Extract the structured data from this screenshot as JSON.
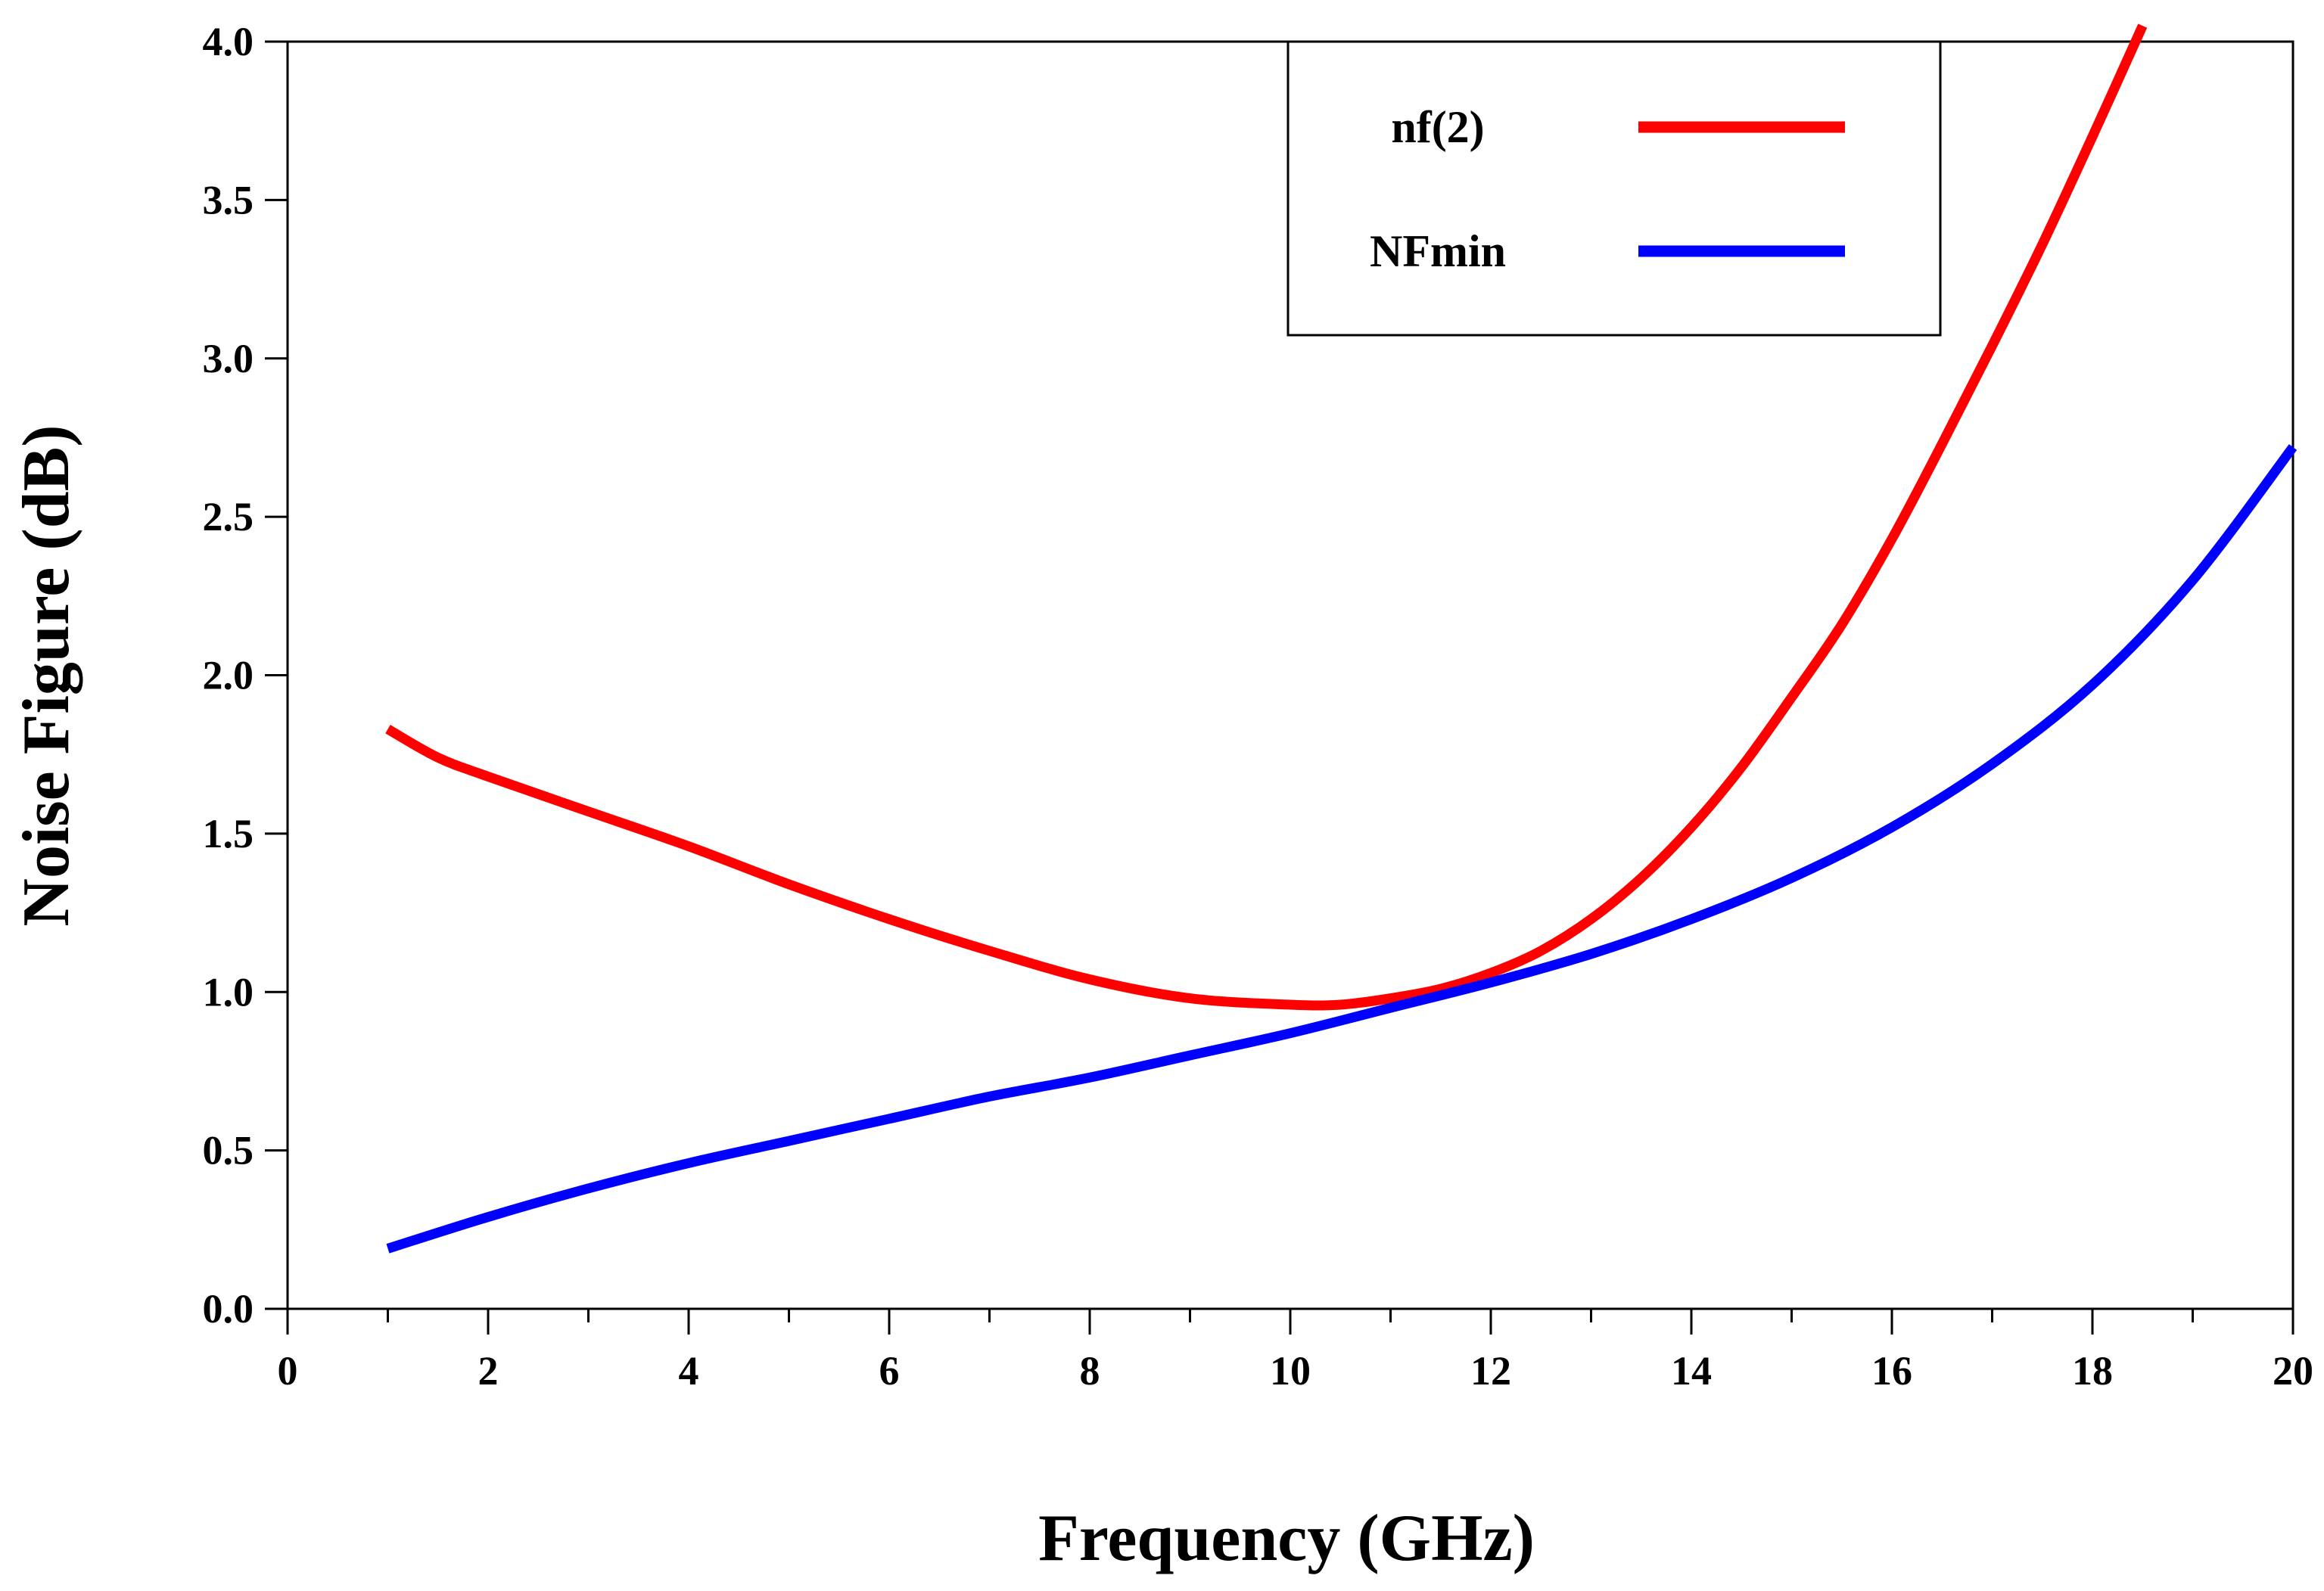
{
  "chart_data": {
    "type": "line",
    "title": "",
    "xlabel": "Frequency (GHz)",
    "ylabel": "Noise Figure (dB)",
    "xlim": [
      0,
      20
    ],
    "ylim": [
      0,
      4.0
    ],
    "xticks": [
      "0",
      "2",
      "4",
      "6",
      "8",
      "10",
      "12",
      "14",
      "16",
      "18",
      "20"
    ],
    "yticks": [
      "0.0",
      "0.5",
      "1.0",
      "1.5",
      "2.0",
      "2.5",
      "3.0",
      "3.5",
      "4.0"
    ],
    "grid": false,
    "legend_position": "top-right",
    "series": [
      {
        "name": "nf(2)",
        "color": "#ff0000",
        "x": [
          1,
          1.5,
          2,
          3,
          4,
          5,
          6,
          7,
          8,
          9,
          10,
          10.5,
          11,
          11.5,
          12,
          12.5,
          13,
          13.5,
          14,
          14.5,
          15,
          15.5,
          16,
          16.5,
          17,
          17.5,
          18,
          18.5
        ],
        "y": [
          1.83,
          1.74,
          1.68,
          1.57,
          1.46,
          1.34,
          1.23,
          1.13,
          1.04,
          0.98,
          0.96,
          0.96,
          0.98,
          1.01,
          1.06,
          1.13,
          1.23,
          1.36,
          1.52,
          1.71,
          1.93,
          2.16,
          2.43,
          2.73,
          3.04,
          3.36,
          3.7,
          4.05
        ]
      },
      {
        "name": "NFmin",
        "color": "#0000ff",
        "x": [
          1,
          2,
          3,
          4,
          5,
          6,
          7,
          8,
          9,
          10,
          11,
          12,
          13,
          14,
          15,
          16,
          17,
          18,
          19,
          20
        ],
        "y": [
          0.19,
          0.29,
          0.38,
          0.46,
          0.53,
          0.6,
          0.67,
          0.73,
          0.8,
          0.87,
          0.95,
          1.03,
          1.12,
          1.23,
          1.36,
          1.52,
          1.72,
          1.97,
          2.3,
          2.72
        ]
      }
    ]
  }
}
